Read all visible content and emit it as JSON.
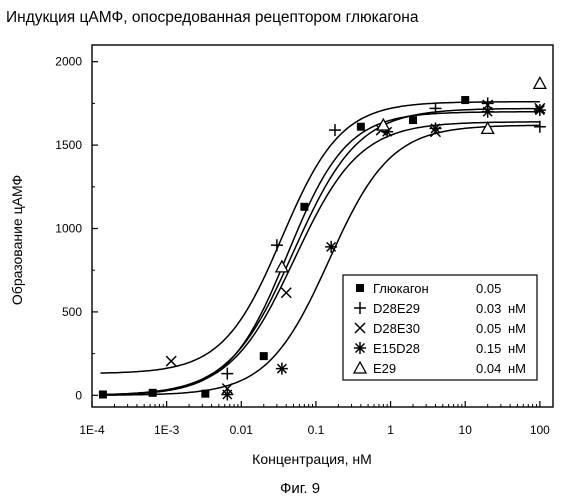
{
  "chart_data": {
    "type": "scatter",
    "title": "Индукция цАМФ, опосредованная рецептором глюкагона",
    "xlabel": "Концентрация, нМ",
    "ylabel": "Образование цАМФ",
    "x_scale": "log",
    "xlim": [
      0.0001,
      150
    ],
    "ylim": [
      -70,
      2100
    ],
    "xticks": [
      "1E-4",
      "1E-3",
      "0.01",
      "0.1",
      "1",
      "10",
      "100"
    ],
    "yticks": [
      "0",
      "500",
      "1000",
      "1500",
      "2000"
    ],
    "grid": false,
    "legend_position": "bottom-right",
    "series": [
      {
        "name": "Глюкагон",
        "ec50": "0.05",
        "unit": "",
        "marker": "square-filled",
        "fit": {
          "bottom": 0,
          "top": 1640,
          "ec50": 0.052,
          "hill": 1.0
        },
        "points": [
          {
            "x": 0.00014,
            "y": 5
          },
          {
            "x": 0.00065,
            "y": 15
          },
          {
            "x": 0.0033,
            "y": 10
          },
          {
            "x": 0.02,
            "y": 235
          },
          {
            "x": 0.07,
            "y": 1130
          },
          {
            "x": 0.4,
            "y": 1610
          },
          {
            "x": 2,
            "y": 1650
          },
          {
            "x": 10,
            "y": 1770
          }
        ]
      },
      {
        "name": "D28E29",
        "ec50": "0.03",
        "unit": "нМ",
        "marker": "plus",
        "fit": {
          "bottom": 130,
          "top": 1760,
          "ec50": 0.035,
          "hill": 1.1
        },
        "points": [
          {
            "x": 0.0065,
            "y": 130
          },
          {
            "x": 0.03,
            "y": 900
          },
          {
            "x": 0.18,
            "y": 1590
          },
          {
            "x": 4,
            "y": 1720
          },
          {
            "x": 20,
            "y": 1750
          },
          {
            "x": 100,
            "y": 1610
          }
        ]
      },
      {
        "name": "D28E30",
        "ec50": "0.05",
        "unit": "нМ",
        "marker": "x",
        "fit": {
          "bottom": 0,
          "top": 1720,
          "ec50": 0.05,
          "hill": 1.0
        },
        "points": [
          {
            "x": 0.00115,
            "y": 205
          },
          {
            "x": 0.0065,
            "y": 40
          },
          {
            "x": 0.04,
            "y": 615
          },
          {
            "x": 0.75,
            "y": 1590
          },
          {
            "x": 4,
            "y": 1580
          },
          {
            "x": 20,
            "y": 1740
          },
          {
            "x": 100,
            "y": 1720
          }
        ]
      },
      {
        "name": "E15D28",
        "ec50": "0.15",
        "unit": "нМ",
        "marker": "asterisk",
        "fit": {
          "bottom": 0,
          "top": 1620,
          "ec50": 0.15,
          "hill": 1.05
        },
        "points": [
          {
            "x": 0.0065,
            "y": 5
          },
          {
            "x": 0.035,
            "y": 160
          },
          {
            "x": 0.16,
            "y": 890
          },
          {
            "x": 0.9,
            "y": 1580
          },
          {
            "x": 4,
            "y": 1600
          },
          {
            "x": 20,
            "y": 1700
          },
          {
            "x": 100,
            "y": 1710
          }
        ]
      },
      {
        "name": "E29",
        "ec50": "0.04",
        "unit": "нМ",
        "marker": "triangle-open",
        "fit": {
          "bottom": 0,
          "top": 1700,
          "ec50": 0.042,
          "hill": 1.1
        },
        "points": [
          {
            "x": 0.035,
            "y": 770
          },
          {
            "x": 0.8,
            "y": 1620
          },
          {
            "x": 20,
            "y": 1600
          },
          {
            "x": 100,
            "y": 1870
          }
        ]
      }
    ]
  },
  "caption": "Фиг. 9"
}
